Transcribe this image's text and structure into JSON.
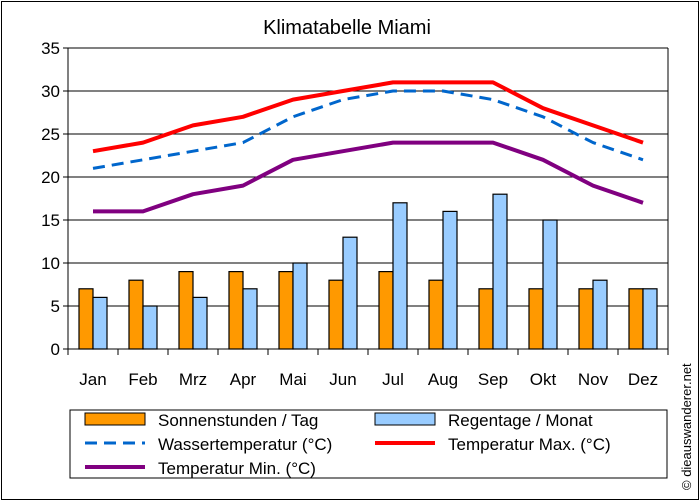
{
  "chart_data": {
    "type": "bar",
    "title": "Klimatabelle Miami",
    "categories": [
      "Jan",
      "Feb",
      "Mrz",
      "Apr",
      "Mai",
      "Jun",
      "Jul",
      "Aug",
      "Sep",
      "Okt",
      "Nov",
      "Dez"
    ],
    "ylim": [
      0,
      35
    ],
    "yticks": [
      0,
      5,
      10,
      15,
      20,
      25,
      30,
      35
    ],
    "grid": true,
    "legend_placement": "bottom",
    "series": [
      {
        "name": "Sonnenstunden / Tag",
        "kind": "bar",
        "color": "#ff9900",
        "values": [
          7,
          8,
          9,
          9,
          9,
          8,
          9,
          8,
          7,
          7,
          7,
          7
        ]
      },
      {
        "name": "Regentage / Monat",
        "kind": "bar",
        "color": "#99ccff",
        "values": [
          6,
          5,
          6,
          7,
          10,
          13,
          17,
          16,
          18,
          15,
          8,
          7
        ]
      },
      {
        "name": "Wassertemperatur (°C)",
        "kind": "line",
        "style": "dashed",
        "color": "#0066cc",
        "values": [
          21,
          22,
          23,
          24,
          27,
          29,
          30,
          30,
          29,
          27,
          24,
          22
        ]
      },
      {
        "name": "Temperatur Max. (°C)",
        "kind": "line",
        "color": "#ff0000",
        "values": [
          23,
          24,
          26,
          27,
          29,
          30,
          31,
          31,
          31,
          28,
          26,
          24
        ]
      },
      {
        "name": "Temperatur Min. (°C)",
        "kind": "line",
        "color": "#800080",
        "values": [
          16,
          16,
          18,
          19,
          22,
          23,
          24,
          24,
          24,
          22,
          19,
          17
        ]
      }
    ]
  },
  "watermark": "© dieauswanderer.net"
}
